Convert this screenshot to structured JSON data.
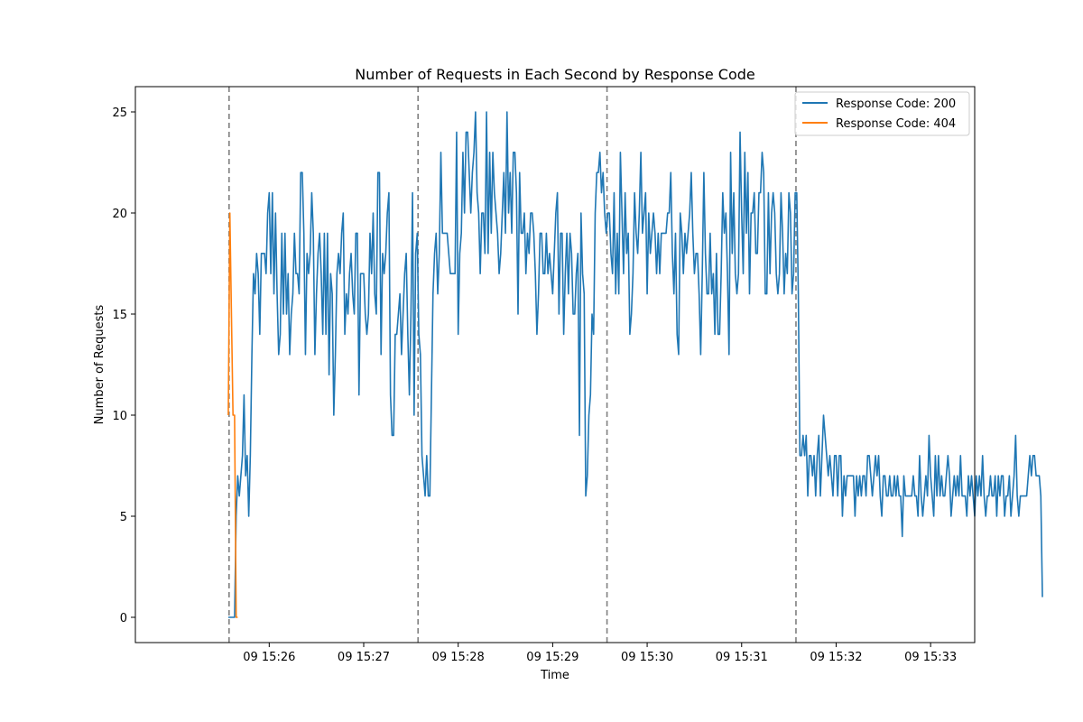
{
  "chart_data": {
    "type": "line",
    "title": "Number of Requests in Each Second by Response Code",
    "xlabel": "Time",
    "ylabel": "Number of Requests",
    "x_ticks": [
      "09 15:26",
      "09 15:27",
      "09 15:28",
      "09 15:29",
      "09 15:30",
      "09 15:31",
      "09 15:32",
      "09 15:33"
    ],
    "x_tick_seconds": [
      60,
      120,
      180,
      240,
      300,
      360,
      420,
      480
    ],
    "y_ticks": [
      0,
      5,
      10,
      15,
      20,
      25
    ],
    "xlim_seconds": [
      -25,
      508
    ],
    "ylim": [
      -1.25,
      26.25
    ],
    "x_start_time": "09 15:25",
    "grid": false,
    "legend_position": "top-right",
    "vertical_markers_seconds": [
      34.5,
      154.5,
      274.5,
      394.5
    ],
    "series": [
      {
        "name": "Response Code: 200",
        "color": "#1f77b4",
        "x_start": 34,
        "x_step": 1,
        "values": [
          0,
          0,
          0,
          0,
          0,
          5,
          7,
          6,
          7,
          8,
          11,
          7,
          8,
          5,
          8,
          13,
          17,
          16,
          18,
          17,
          14,
          18,
          18,
          18,
          17,
          20,
          21,
          17,
          21,
          16,
          20,
          16,
          13,
          14,
          19,
          15,
          19,
          15,
          17,
          13,
          15,
          16,
          19,
          17,
          17,
          16,
          22,
          22,
          19,
          13,
          18,
          17,
          18,
          21,
          19,
          13,
          16,
          18,
          19,
          17,
          14,
          19,
          14,
          19,
          12,
          17,
          16,
          10,
          13,
          17,
          18,
          17,
          19,
          20,
          14,
          16,
          15,
          17,
          18,
          16,
          15,
          19,
          19,
          11,
          17,
          17,
          17,
          15,
          14,
          15,
          19,
          17,
          20,
          16,
          15,
          22,
          22,
          13,
          18,
          17,
          18,
          20,
          21,
          11,
          9,
          9,
          14,
          14,
          15,
          16,
          13,
          15,
          17,
          18,
          14,
          11,
          15,
          21,
          10,
          18,
          19,
          14,
          13,
          8,
          7,
          6,
          8,
          6,
          6,
          11,
          16,
          18,
          19,
          16,
          18,
          23,
          19,
          19,
          19,
          19,
          18,
          17,
          17,
          17,
          17,
          24,
          14,
          18,
          19,
          23,
          20,
          24,
          24,
          22,
          20,
          22,
          23,
          25,
          21,
          20,
          17,
          20,
          20,
          18,
          25,
          18,
          23,
          19,
          23,
          21,
          20,
          19,
          17,
          18,
          20,
          22,
          19,
          25,
          20,
          22,
          19,
          23,
          23,
          21,
          15,
          22,
          19,
          19,
          20,
          17,
          19,
          18,
          20,
          20,
          19,
          17,
          14,
          16,
          19,
          19,
          17,
          17,
          19,
          17,
          18,
          17,
          16,
          18,
          20,
          21,
          15,
          19,
          19,
          14,
          17,
          19,
          16,
          19,
          18,
          15,
          15,
          17,
          18,
          9,
          20,
          17,
          16,
          6,
          7,
          10,
          11,
          15,
          14,
          20,
          22,
          22,
          23,
          21,
          22,
          20,
          19,
          20,
          20,
          18,
          17,
          21,
          16,
          19,
          16,
          23,
          20,
          17,
          21,
          18,
          19,
          14,
          15,
          17,
          21,
          19,
          18,
          20,
          23,
          19,
          20,
          21,
          16,
          20,
          18,
          19,
          20,
          19,
          17,
          19,
          17,
          19,
          19,
          19,
          19,
          20,
          20,
          22,
          18,
          16,
          19,
          14,
          13,
          20,
          19,
          17,
          19,
          18,
          19,
          20,
          22,
          19,
          17,
          18,
          18,
          16,
          13,
          17,
          22,
          18,
          16,
          16,
          19,
          16,
          17,
          14,
          18,
          14,
          14,
          17,
          21,
          19,
          20,
          17,
          13,
          23,
          18,
          21,
          17,
          16,
          17,
          24,
          20,
          17,
          23,
          19,
          22,
          16,
          20,
          20,
          21,
          18,
          18,
          21,
          21,
          23,
          22,
          16,
          16,
          21,
          17,
          20,
          21,
          20,
          17,
          16,
          17,
          21,
          19,
          16,
          18,
          17,
          21,
          20,
          16,
          17,
          21,
          21,
          16,
          8,
          8,
          9,
          8,
          9,
          6,
          8,
          8,
          7,
          8,
          6,
          8,
          9,
          6,
          8,
          10,
          9,
          8,
          7,
          8,
          7,
          6,
          8,
          8,
          6,
          8,
          8,
          5,
          7,
          6,
          7,
          7,
          7,
          7,
          7,
          5,
          7,
          6,
          7,
          6,
          7,
          7,
          6,
          8,
          8,
          7,
          6,
          7,
          8,
          7,
          8,
          6,
          5,
          7,
          7,
          6,
          6,
          7,
          6,
          6,
          7,
          6,
          7,
          6,
          6,
          4,
          7,
          6,
          6,
          6,
          6,
          6,
          7,
          6,
          6,
          5,
          8,
          6,
          5,
          6,
          7,
          6,
          9,
          7,
          6,
          5,
          8,
          6,
          8,
          6,
          7,
          6,
          6,
          7,
          8,
          7,
          5,
          6,
          7,
          6,
          7,
          6,
          8,
          6,
          6,
          6,
          5,
          7,
          6,
          7,
          6,
          5,
          7,
          6,
          7,
          6,
          8,
          6,
          5,
          6,
          6,
          7,
          6,
          6,
          7,
          5,
          7,
          6,
          7,
          7,
          5,
          6,
          6,
          7,
          5,
          6,
          7,
          9,
          6,
          5,
          6,
          6,
          6,
          6,
          6,
          7,
          8,
          7,
          8,
          8,
          7,
          7,
          7,
          6,
          1
        ]
      },
      {
        "name": "Response Code: 404",
        "color": "#ff7f0e",
        "x_start": 34,
        "x_step": 1,
        "values": [
          10,
          20,
          15,
          10,
          10,
          0,
          0
        ]
      }
    ]
  }
}
